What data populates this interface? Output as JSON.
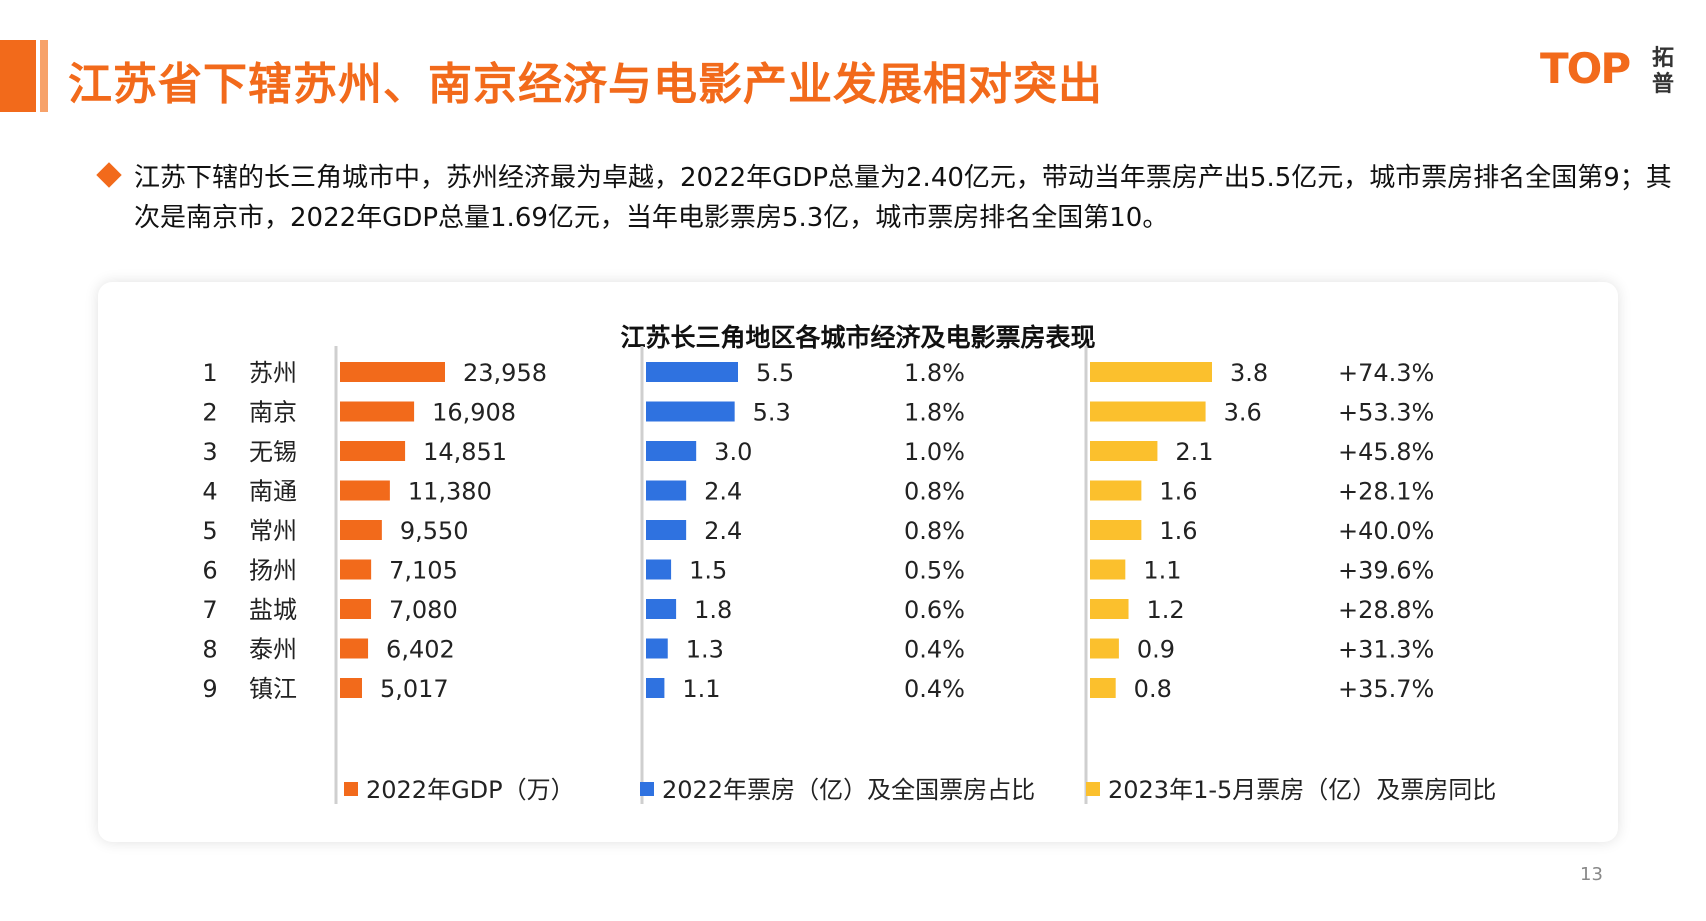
{
  "slide": {
    "title": "江苏省下辖苏州、南京经济与电影产业发展相对突出",
    "bullet": "江苏下辖的长三角城市中，苏州经济最为卓越，2022年GDP总量为2.40亿元，带动当年票房产出5.5亿元，城市票房排名全国第9；其次是南京市，2022年GDP总量1.69亿元，当年电影票房5.3亿，城市票房排名全国第10。",
    "page_number": "13",
    "logo": {
      "word": "TOP",
      "cn": "拓普"
    }
  },
  "colors": {
    "accent": "#f26a1b",
    "gdp": "#f26a1b",
    "box_office_2022": "#2f72e0",
    "box_office_2023": "#fbc02d"
  },
  "chart_data": {
    "type": "bar",
    "title": "江苏长三角地区各城市经济及电影票房表现",
    "ranks": [
      "1",
      "2",
      "3",
      "4",
      "5",
      "6",
      "7",
      "8",
      "9"
    ],
    "categories": [
      "苏州",
      "南京",
      "无锡",
      "南通",
      "常州",
      "扬州",
      "盐城",
      "泰州",
      "镇江"
    ],
    "series": [
      {
        "name": "2022年GDP（万）",
        "values": [
          23958,
          16908,
          14851,
          11380,
          9550,
          7105,
          7080,
          6402,
          5017
        ],
        "labels": [
          "23,958",
          "16,908",
          "14,851",
          "11,380",
          "9,550",
          "7,105",
          "7,080",
          "6,402",
          "5,017"
        ]
      },
      {
        "name": "2022年票房（亿）及全国票房占比",
        "values": [
          5.5,
          5.3,
          3.0,
          2.4,
          2.4,
          1.5,
          1.8,
          1.3,
          1.1
        ],
        "labels": [
          "5.5",
          "5.3",
          "3.0",
          "2.4",
          "2.4",
          "1.5",
          "1.8",
          "1.3",
          "1.1"
        ],
        "share_labels": [
          "1.8%",
          "1.8%",
          "1.0%",
          "0.8%",
          "0.8%",
          "0.5%",
          "0.6%",
          "0.4%",
          "0.4%"
        ]
      },
      {
        "name": "2023年1-5月票房（亿）及票房同比",
        "values": [
          3.8,
          3.6,
          2.1,
          1.6,
          1.6,
          1.1,
          1.2,
          0.9,
          0.8
        ],
        "labels": [
          "3.8",
          "3.6",
          "2.1",
          "1.6",
          "1.6",
          "1.1",
          "1.2",
          "0.9",
          "0.8"
        ],
        "yoy_labels": [
          "+74.3%",
          "+53.3%",
          "+45.8%",
          "+28.1%",
          "+40.0%",
          "+39.6%",
          "+28.8%",
          "+31.3%",
          "+35.7%"
        ]
      }
    ],
    "legend_position": "bottom",
    "grid": false
  }
}
